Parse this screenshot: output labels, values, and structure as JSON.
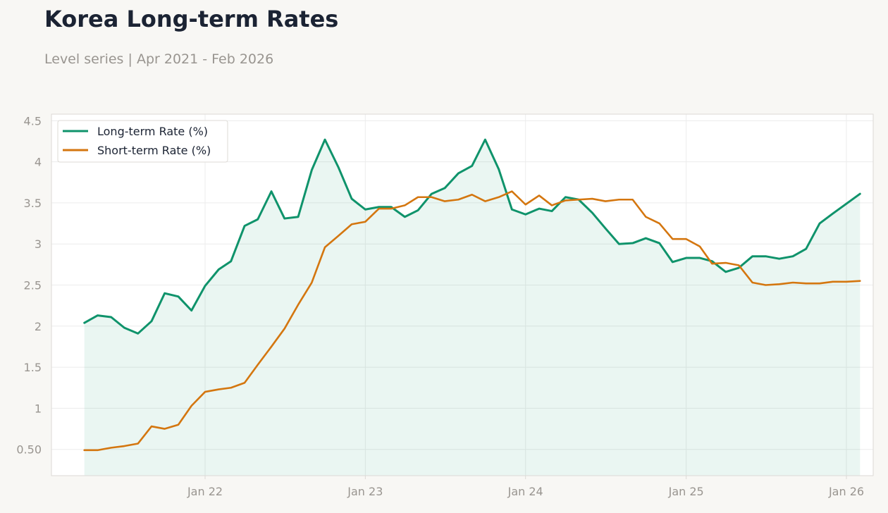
{
  "header": {
    "title": "Korea Long-term Rates",
    "subtitle": "Level series | Apr 2021 - Feb 2026"
  },
  "colors": {
    "long": "#0f936b",
    "short": "#d4760f",
    "fill": "#0f936b",
    "grid": "#ececec",
    "axis": "#dcdad6",
    "background": "#f8f7f4",
    "plot_background": "#ffffff"
  },
  "chart_data": {
    "type": "line",
    "x": [
      "2021-04",
      "2021-05",
      "2021-06",
      "2021-07",
      "2021-08",
      "2021-09",
      "2021-10",
      "2021-11",
      "2021-12",
      "2022-01",
      "2022-02",
      "2022-03",
      "2022-04",
      "2022-05",
      "2022-06",
      "2022-07",
      "2022-08",
      "2022-09",
      "2022-10",
      "2022-11",
      "2022-12",
      "2023-01",
      "2023-02",
      "2023-03",
      "2023-04",
      "2023-05",
      "2023-06",
      "2023-07",
      "2023-08",
      "2023-09",
      "2023-10",
      "2023-11",
      "2023-12",
      "2024-01",
      "2024-02",
      "2024-03",
      "2024-04",
      "2024-05",
      "2024-06",
      "2024-07",
      "2024-08",
      "2024-09",
      "2024-10",
      "2024-11",
      "2024-12",
      "2025-01",
      "2025-02",
      "2025-03",
      "2025-04",
      "2025-05",
      "2025-06",
      "2025-07",
      "2025-08",
      "2025-09",
      "2025-10",
      "2025-11",
      "2025-12",
      "2026-01",
      "2026-02"
    ],
    "series": [
      {
        "name": "Long-term Rate (%)",
        "values": [
          2.04,
          2.13,
          2.11,
          1.98,
          1.91,
          2.06,
          2.4,
          2.36,
          2.19,
          2.49,
          2.69,
          2.79,
          3.22,
          3.3,
          3.64,
          3.31,
          3.33,
          3.9,
          4.27,
          3.93,
          3.55,
          3.42,
          3.45,
          3.45,
          3.33,
          3.41,
          3.61,
          3.68,
          3.86,
          3.95,
          4.27,
          3.91,
          3.42,
          3.36,
          3.43,
          3.4,
          3.57,
          3.54,
          3.38,
          3.19,
          3.0,
          3.01,
          3.07,
          3.01,
          2.78,
          2.83,
          2.83,
          2.79,
          2.66,
          2.71,
          2.85,
          2.85,
          2.82,
          2.85,
          2.94,
          3.25,
          3.37,
          3.49,
          3.61
        ]
      },
      {
        "name": "Short-term Rate (%)",
        "values": [
          0.49,
          0.49,
          0.52,
          0.54,
          0.57,
          0.78,
          0.75,
          0.8,
          1.03,
          1.2,
          1.23,
          1.25,
          1.31,
          1.53,
          1.75,
          1.97,
          2.26,
          2.53,
          2.96,
          3.1,
          3.24,
          3.27,
          3.43,
          3.43,
          3.47,
          3.57,
          3.57,
          3.52,
          3.54,
          3.6,
          3.52,
          3.57,
          3.64,
          3.48,
          3.59,
          3.47,
          3.53,
          3.54,
          3.55,
          3.52,
          3.54,
          3.54,
          3.33,
          3.25,
          3.06,
          3.06,
          2.97,
          2.76,
          2.77,
          2.74,
          2.53,
          2.5,
          2.51,
          2.53,
          2.52,
          2.52,
          2.54,
          2.54,
          2.55
        ]
      }
    ],
    "xticks": [
      "Jan 22",
      "Jan 23",
      "Jan 24",
      "Jan 25",
      "Jan 26"
    ],
    "yticks": [
      "0.50",
      "1",
      "1.5",
      "2",
      "2.5",
      "3",
      "3.5",
      "4",
      "4.5"
    ],
    "ylim": [
      0.18,
      4.58
    ],
    "xlim": [
      "2021-01-16",
      "2026-03-03"
    ],
    "grid": true,
    "area_fill_series": "Long-term Rate (%)",
    "legend_position": "top-left"
  }
}
